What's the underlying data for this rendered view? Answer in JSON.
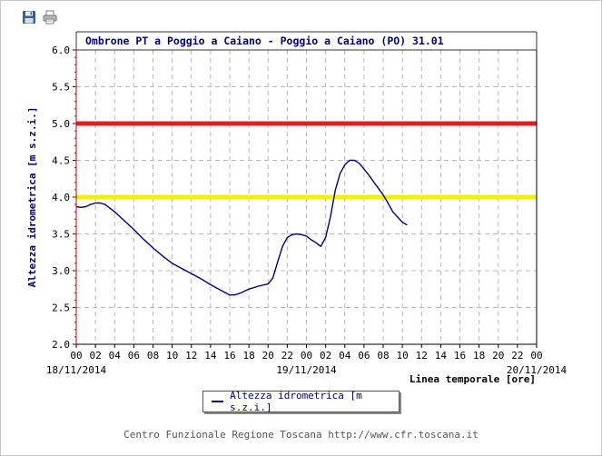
{
  "toolbar": {
    "save_icon": "floppy-disk-icon",
    "print_icon": "printer-icon"
  },
  "chart_data": {
    "type": "line",
    "title": "Ombrone PT a Poggio a Caiano - Poggio a Caiano (PO) 31.01",
    "ylabel": "Altezza idrometrica [m s.z.i.]",
    "xlabel": "Linea temporale [ore]",
    "ylim": [
      2.0,
      6.0
    ],
    "yticks": [
      "2.0",
      "2.5",
      "3.0",
      "3.5",
      "4.0",
      "4.5",
      "5.0",
      "5.5",
      "6.0"
    ],
    "xlim_hours": [
      0,
      48
    ],
    "xticks": [
      "00",
      "02",
      "04",
      "06",
      "08",
      "10",
      "12",
      "14",
      "16",
      "18",
      "20",
      "22",
      "00",
      "02",
      "04",
      "06",
      "08",
      "10",
      "12",
      "14",
      "16",
      "18",
      "20",
      "22",
      "00"
    ],
    "date_labels": [
      {
        "hour": 0,
        "label": "18/11/2014"
      },
      {
        "hour": 24,
        "label": "19/11/2014"
      },
      {
        "hour": 48,
        "label": "20/11/2014"
      }
    ],
    "grid": true,
    "thresholds": [
      {
        "value": 5.0,
        "color": "#e02020"
      },
      {
        "value": 4.0,
        "color": "#f5f000"
      }
    ],
    "series": [
      {
        "name": "Altezza idrometrica [m s.z.i.]",
        "color": "#00007c",
        "x_hours": [
          0,
          0.5,
          1,
          1.5,
          2,
          2.5,
          3,
          4,
          5,
          6,
          7,
          8,
          9,
          10,
          11,
          12,
          13,
          14,
          15,
          16,
          16.5,
          17,
          18,
          19,
          20,
          20.5,
          21,
          21.5,
          22,
          22.5,
          23,
          23.5,
          24,
          24.5,
          25,
          25.5,
          26,
          26.5,
          27,
          27.5,
          28,
          28.5,
          29,
          29.5,
          30,
          30.5,
          31,
          31.5,
          32,
          32.5,
          33,
          33.5,
          34,
          34.5
        ],
        "values": [
          3.87,
          3.86,
          3.87,
          3.9,
          3.92,
          3.92,
          3.9,
          3.8,
          3.68,
          3.56,
          3.43,
          3.31,
          3.2,
          3.1,
          3.03,
          2.96,
          2.89,
          2.81,
          2.74,
          2.67,
          2.67,
          2.69,
          2.75,
          2.79,
          2.82,
          2.9,
          3.12,
          3.33,
          3.45,
          3.49,
          3.5,
          3.49,
          3.47,
          3.42,
          3.38,
          3.33,
          3.45,
          3.73,
          4.09,
          4.32,
          4.44,
          4.5,
          4.5,
          4.46,
          4.38,
          4.3,
          4.21,
          4.12,
          4.03,
          3.92,
          3.8,
          3.73,
          3.66,
          3.62
        ]
      }
    ]
  },
  "legend": {
    "label": "Altezza idrometrica [m s.z.i.]"
  },
  "footer": {
    "text": "Centro Funzionale Regione Toscana http://www.cfr.toscana.it"
  }
}
